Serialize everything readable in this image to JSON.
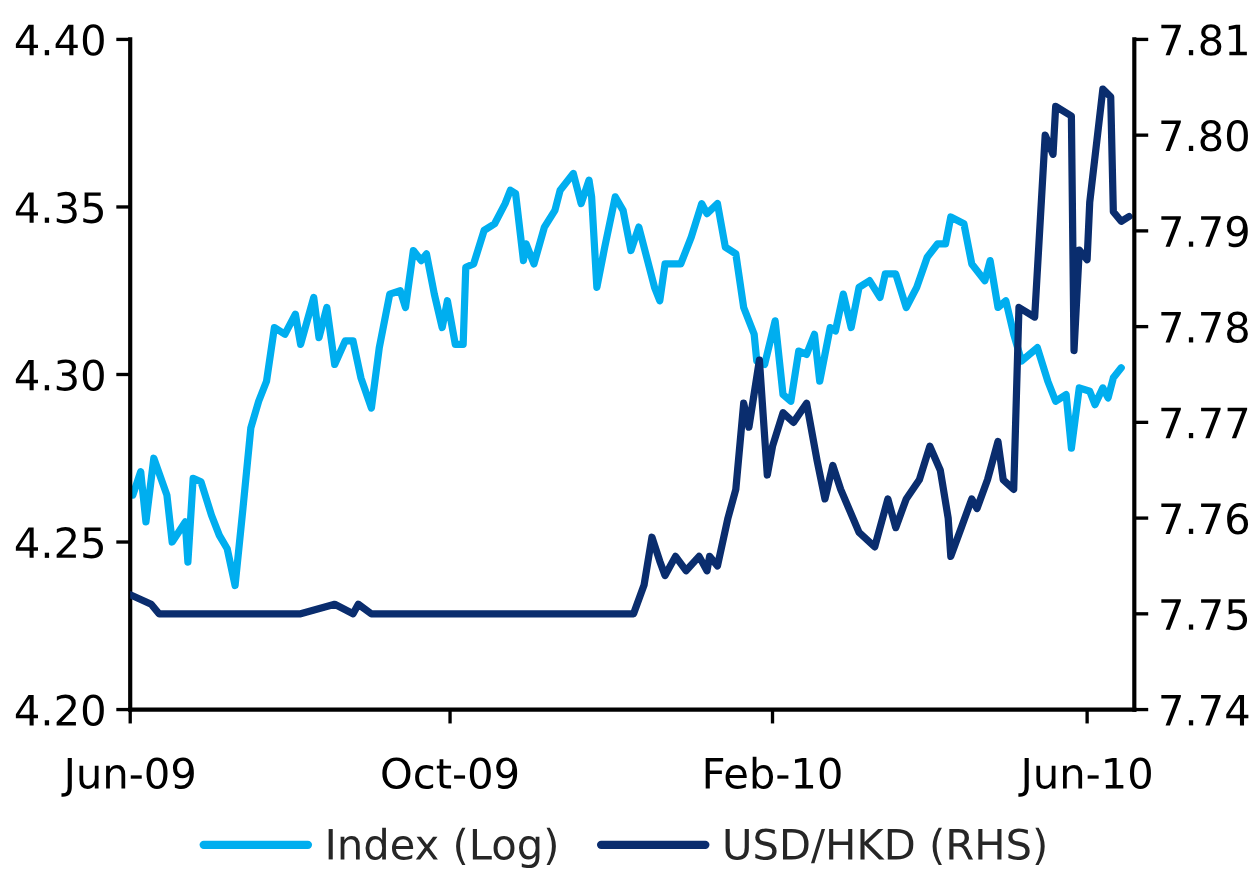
{
  "chart_data": {
    "type": "line",
    "xlim": [
      "2009-06-01",
      "2010-06-19"
    ],
    "xticks": [
      {
        "value": "2009-06-01",
        "label": "Jun-09"
      },
      {
        "value": "2009-10-01",
        "label": "Oct-09"
      },
      {
        "value": "2010-02-01",
        "label": "Feb-10"
      },
      {
        "value": "2010-06-01",
        "label": "Jun-10"
      }
    ],
    "ylim": [
      4.2,
      4.4
    ],
    "yticks": [
      {
        "value": 4.2,
        "label": "4.20"
      },
      4.25,
      {
        "value": 4.3,
        "label": "4.30"
      },
      4.35,
      {
        "value": 4.4,
        "label": "4.40"
      }
    ],
    "y2lim": [
      7.74,
      7.81
    ],
    "y2ticks": [
      7.74,
      7.75,
      7.76,
      7.77,
      7.78,
      7.79,
      {
        "value": 7.8,
        "label": "7.80"
      },
      7.81
    ],
    "grid": false,
    "legend": "bottom",
    "line_style": "solid",
    "marker": "none",
    "series": [
      {
        "name": "Index (Log)",
        "color": "#00aeef",
        "x": [
          "2009-06-02",
          "2009-06-05",
          "2009-06-07",
          "2009-06-10",
          "2009-06-15",
          "2009-06-17",
          "2009-06-22",
          "2009-06-23",
          "2009-06-25",
          "2009-06-28",
          "2009-07-02",
          "2009-07-05",
          "2009-07-08",
          "2009-07-11",
          "2009-07-14",
          "2009-07-17",
          "2009-07-20",
          "2009-07-23",
          "2009-07-26",
          "2009-07-30",
          "2009-08-03",
          "2009-08-05",
          "2009-08-10",
          "2009-08-12",
          "2009-08-15",
          "2009-08-18",
          "2009-08-22",
          "2009-08-25",
          "2009-08-28",
          "2009-09-01",
          "2009-09-04",
          "2009-09-08",
          "2009-09-12",
          "2009-09-14",
          "2009-09-17",
          "2009-09-20",
          "2009-09-22",
          "2009-09-25",
          "2009-09-28",
          "2009-09-30",
          "2009-10-03",
          "2009-10-06",
          "2009-10-07",
          "2009-10-10",
          "2009-10-14",
          "2009-10-18",
          "2009-10-22",
          "2009-10-24",
          "2009-10-26",
          "2009-10-29",
          "2009-10-30",
          "2009-11-02",
          "2009-11-06",
          "2009-11-10",
          "2009-11-12",
          "2009-11-17",
          "2009-11-20",
          "2009-11-23",
          "2009-11-24",
          "2009-11-26",
          "2009-11-29",
          "2009-12-03",
          "2009-12-06",
          "2009-12-09",
          "2009-12-12",
          "2009-12-18",
          "2009-12-20",
          "2009-12-22",
          "2009-12-28",
          "2010-01-01",
          "2010-01-05",
          "2010-01-07",
          "2010-01-11",
          "2010-01-14",
          "2010-01-18",
          "2010-01-21",
          "2010-01-25",
          "2010-01-26",
          "2010-01-29",
          "2010-02-02",
          "2010-02-05",
          "2010-02-08",
          "2010-02-11",
          "2010-02-14",
          "2010-02-17",
          "2010-02-19",
          "2010-02-23",
          "2010-02-25",
          "2010-02-28",
          "2010-03-03",
          "2010-03-06",
          "2010-03-10",
          "2010-03-14",
          "2010-03-16",
          "2010-03-20",
          "2010-03-24",
          "2010-03-28",
          "2010-04-01",
          "2010-04-05",
          "2010-04-08",
          "2010-04-10",
          "2010-04-15",
          "2010-04-18",
          "2010-04-23",
          "2010-04-25",
          "2010-04-28",
          "2010-05-01",
          "2010-05-04",
          "2010-05-07",
          "2010-05-13",
          "2010-05-17",
          "2010-05-20",
          "2010-05-24",
          "2010-05-26",
          "2010-05-29",
          "2010-06-02",
          "2010-06-04",
          "2010-06-07",
          "2010-06-09",
          "2010-06-11",
          "2010-06-14"
        ],
        "values": [
          4.264,
          4.271,
          4.256,
          4.275,
          4.264,
          4.25,
          4.256,
          4.244,
          4.269,
          4.268,
          4.258,
          4.252,
          4.248,
          4.237,
          4.26,
          4.284,
          4.292,
          4.298,
          4.314,
          4.312,
          4.318,
          4.309,
          4.323,
          4.311,
          4.32,
          4.303,
          4.31,
          4.31,
          4.299,
          4.29,
          4.308,
          4.324,
          4.325,
          4.32,
          4.337,
          4.334,
          4.336,
          4.324,
          4.314,
          4.322,
          4.309,
          4.309,
          4.332,
          4.333,
          4.343,
          4.345,
          4.351,
          4.355,
          4.354,
          4.334,
          4.339,
          4.333,
          4.344,
          4.349,
          4.355,
          4.36,
          4.351,
          4.358,
          4.353,
          4.326,
          4.338,
          4.353,
          4.349,
          4.337,
          4.344,
          4.326,
          4.322,
          4.333,
          4.333,
          4.341,
          4.351,
          4.348,
          4.351,
          4.338,
          4.336,
          4.32,
          4.312,
          4.304,
          4.303,
          4.316,
          4.294,
          4.292,
          4.307,
          4.306,
          4.312,
          4.298,
          4.314,
          4.313,
          4.324,
          4.314,
          4.326,
          4.328,
          4.323,
          4.33,
          4.33,
          4.32,
          4.326,
          4.335,
          4.339,
          4.339,
          4.347,
          4.345,
          4.333,
          4.328,
          4.334,
          4.32,
          4.322,
          4.312,
          4.304,
          4.308,
          4.298,
          4.292,
          4.294,
          4.278,
          4.296,
          4.295,
          4.291,
          4.296,
          4.293,
          4.299,
          4.302
        ]
      },
      {
        "name": "USD/HKD (RHS)",
        "color": "#0a2d6e",
        "axis": "y2",
        "x": [
          "2009-06-01",
          "2009-06-09",
          "2009-06-12",
          "2009-07-05",
          "2009-08-05",
          "2009-08-18",
          "2009-08-25",
          "2009-08-27",
          "2009-09-01",
          "2009-11-28",
          "2009-12-10",
          "2009-12-14",
          "2009-12-17",
          "2009-12-20",
          "2009-12-22",
          "2009-12-26",
          "2009-12-30",
          "2010-01-04",
          "2010-01-07",
          "2010-01-08",
          "2010-01-11",
          "2010-01-15",
          "2010-01-18",
          "2010-01-21",
          "2010-01-23",
          "2010-01-27",
          "2010-01-30",
          "2010-02-01",
          "2010-02-05",
          "2010-02-09",
          "2010-02-14",
          "2010-02-18",
          "2010-02-21",
          "2010-02-24",
          "2010-02-27",
          "2010-03-06",
          "2010-03-12",
          "2010-03-17",
          "2010-03-20",
          "2010-03-24",
          "2010-03-29",
          "2010-04-02",
          "2010-04-06",
          "2010-04-09",
          "2010-04-10",
          "2010-04-14",
          "2010-04-18",
          "2010-04-20",
          "2010-04-24",
          "2010-04-28",
          "2010-04-30",
          "2010-05-04",
          "2010-05-06",
          "2010-05-12",
          "2010-05-16",
          "2010-05-19",
          "2010-05-20",
          "2010-05-26",
          "2010-05-27",
          "2010-05-29",
          "2010-06-01",
          "2010-06-02",
          "2010-06-07",
          "2010-06-10",
          "2010-06-11",
          "2010-06-14",
          "2010-06-17"
        ],
        "values": [
          7.752,
          7.751,
          7.75,
          7.75,
          7.75,
          7.751,
          7.75,
          7.751,
          7.75,
          7.75,
          7.75,
          7.753,
          7.758,
          7.7555,
          7.754,
          7.756,
          7.7545,
          7.756,
          7.7545,
          7.756,
          7.755,
          7.76,
          7.763,
          7.772,
          7.7695,
          7.7765,
          7.7645,
          7.7675,
          7.771,
          7.77,
          7.772,
          7.766,
          7.762,
          7.7655,
          7.763,
          7.7585,
          7.757,
          7.762,
          7.759,
          7.762,
          7.764,
          7.7675,
          7.765,
          7.76,
          7.756,
          7.759,
          7.762,
          7.761,
          7.764,
          7.768,
          7.764,
          7.763,
          7.782,
          7.781,
          7.8,
          7.798,
          7.803,
          7.802,
          7.7775,
          7.788,
          7.787,
          7.793,
          7.8048,
          7.804,
          7.792,
          7.791,
          7.7915
        ]
      }
    ]
  }
}
